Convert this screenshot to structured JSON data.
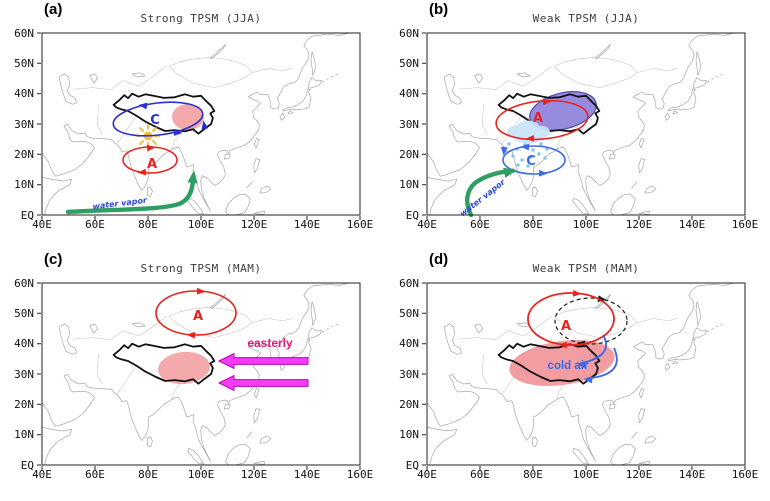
{
  "axis": {
    "y_ticks": [
      "60N",
      "50N",
      "40N",
      "30N",
      "20N",
      "10N",
      "EQ"
    ],
    "x_ticks": [
      "40E",
      "60E",
      "80E",
      "100E",
      "120E",
      "140E",
      "160E"
    ]
  },
  "panels": [
    {
      "letter": "(a)",
      "title": "Strong TPSM (JJA)",
      "cyclone_label": "C",
      "anticyclone_label": "A",
      "arrow_label": "water vapor"
    },
    {
      "letter": "(b)",
      "title": "Weak TPSM (JJA)",
      "cyclone_label": "C",
      "anticyclone_label": "A",
      "arrow_label": "water vapor"
    },
    {
      "letter": "(c)",
      "title": "Strong TPSM (MAM)",
      "anticyclone_label": "A",
      "arrow_label": "easterly"
    },
    {
      "letter": "(d)",
      "title": "Weak TPSM (MAM)",
      "anticyclone_label": "A",
      "arrow_label": "cold air"
    }
  ],
  "colors": {
    "anticyclone": "#e62420",
    "cyclone": "#2b2fd0",
    "cyclone_light": "#3b69ea",
    "dashed": "#1a1a1a",
    "water_vapor_arrow": "#2f9e63",
    "water_vapor_text": "#2b46dd",
    "easterly_fill": "#f53cf5",
    "easterly_stroke": "#bb00bb",
    "easterly_text": "#ea1475",
    "cold_air_text": "#3b69ea",
    "warm_shade": "#f29a9c",
    "warm_shade_deep": "#ee8c90",
    "cool_shade": "#8172d8",
    "cool_shade_stroke": "#23239a",
    "cloud": "#c9e6f9",
    "rain": "#85c4f2",
    "sun": "#f5b83d",
    "plateau": "#111111",
    "coast": "#a8a8a8",
    "border": "#c4c4c4",
    "axis": "#222222",
    "title_text": "#3c3c3c"
  }
}
